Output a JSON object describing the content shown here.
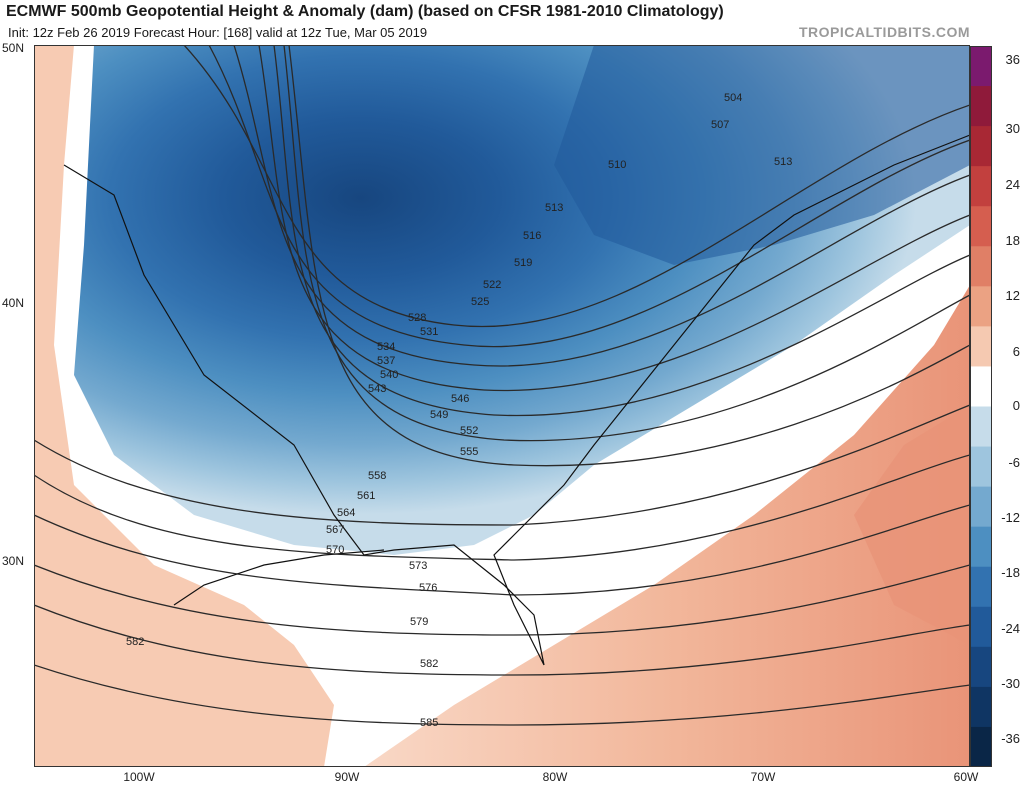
{
  "header": {
    "title": "ECMWF 500mb Geopotential Height & Anomaly (dam) (based on CFSR 1981-2010 Climatology)",
    "subtitle": "Init: 12z Feb 26 2019   Forecast Hour: [168]   valid at 12z Tue, Mar 05 2019",
    "brand": "TROPICALTIDBITS.COM"
  },
  "axes": {
    "lat_labels": [
      "50N",
      "40N",
      "30N"
    ],
    "lon_labels": [
      "100W",
      "90W",
      "80W",
      "70W",
      "60W"
    ]
  },
  "contours": {
    "labels": [
      "504",
      "507",
      "510",
      "513",
      "513",
      "516",
      "519",
      "522",
      "525",
      "528",
      "531",
      "534",
      "537",
      "540",
      "543",
      "546",
      "549",
      "552",
      "555",
      "558",
      "561",
      "564",
      "567",
      "570",
      "573",
      "576",
      "579",
      "582",
      "582",
      "585"
    ]
  },
  "colorbar": {
    "ticks": [
      "36",
      "30",
      "24",
      "18",
      "12",
      "6",
      "0",
      "-6",
      "-12",
      "-18",
      "-24",
      "-30",
      "-36"
    ],
    "colors": [
      "#7b1a6e",
      "#8f1a3a",
      "#a82834",
      "#c2403e",
      "#d55e4f",
      "#e07f66",
      "#eba283",
      "#f5c9b1",
      "#ffffff",
      "#c6dcea",
      "#9ec5de",
      "#74a9cf",
      "#4d8fc1",
      "#3272b0",
      "#215a9a",
      "#17467f",
      "#0f3563",
      "#0a2647"
    ]
  }
}
